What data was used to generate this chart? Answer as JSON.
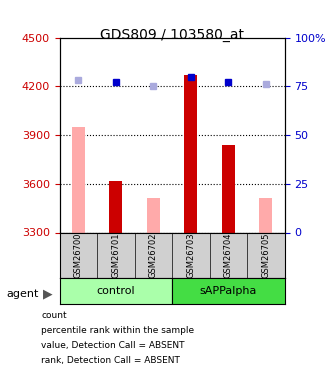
{
  "title": "GDS809 / 103580_at",
  "samples": [
    "GSM26700",
    "GSM26701",
    "GSM26702",
    "GSM26703",
    "GSM26704",
    "GSM26705"
  ],
  "group_labels": [
    "control",
    "sAPPalpha"
  ],
  "ylim_left": [
    3300,
    4500
  ],
  "ylim_right": [
    0,
    100
  ],
  "yticks_left": [
    3300,
    3600,
    3900,
    4200,
    4500
  ],
  "yticks_right": [
    0,
    25,
    50,
    75,
    100
  ],
  "ytick_labels_right": [
    "0",
    "25",
    "50",
    "75",
    "100%"
  ],
  "bar_values": [
    3950,
    3620,
    3510,
    4270,
    3840,
    3510
  ],
  "bar_absent": [
    true,
    false,
    true,
    false,
    false,
    true
  ],
  "rank_values": [
    78,
    77,
    75,
    80,
    77,
    76
  ],
  "rank_absent": [
    true,
    false,
    true,
    false,
    false,
    true
  ],
  "color_bar_present": "#cc0000",
  "color_bar_absent": "#ffaaaa",
  "color_rank_present": "#0000cc",
  "color_rank_absent": "#aaaadd",
  "color_group_control": "#aaffaa",
  "color_group_sAPPalpha": "#44dd44",
  "ylabel_left_color": "#cc0000",
  "ylabel_right_color": "#0000cc",
  "legend_items": [
    {
      "label": "count",
      "color": "#cc0000"
    },
    {
      "label": "percentile rank within the sample",
      "color": "#0000cc"
    },
    {
      "label": "value, Detection Call = ABSENT",
      "color": "#ffaaaa"
    },
    {
      "label": "rank, Detection Call = ABSENT",
      "color": "#aaaadd"
    }
  ],
  "agent_label": "agent",
  "background_color": "#ffffff",
  "plot_bg_color": "#ffffff",
  "bar_width": 0.35
}
